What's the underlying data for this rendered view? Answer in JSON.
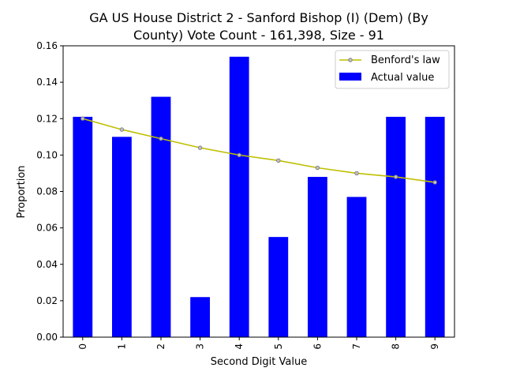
{
  "chart_data": {
    "type": "bar",
    "title_lines": [
      "GA US House District 2 - Sanford Bishop (I) (Dem) (By",
      "County) Vote Count - 161,398, Size - 91"
    ],
    "xlabel": "Second Digit Value",
    "ylabel": "Proportion",
    "categories": [
      "0",
      "1",
      "2",
      "3",
      "4",
      "5",
      "6",
      "7",
      "8",
      "9"
    ],
    "ylim": [
      0,
      0.16
    ],
    "yticks": [
      0.0,
      0.02,
      0.04,
      0.06,
      0.08,
      0.1,
      0.12,
      0.14,
      0.16
    ],
    "ytick_labels": [
      "0.00",
      "0.02",
      "0.04",
      "0.06",
      "0.08",
      "0.10",
      "0.12",
      "0.14",
      "0.16"
    ],
    "grid": false,
    "legend_position": "top-right",
    "series": [
      {
        "name": "Actual value",
        "kind": "bar",
        "color": "#0000ff",
        "values": [
          0.121,
          0.11,
          0.132,
          0.022,
          0.154,
          0.055,
          0.088,
          0.077,
          0.121,
          0.121
        ]
      },
      {
        "name": "Benford's law",
        "kind": "line",
        "color": "#bfbf00",
        "marker_color": "#c0c0c0",
        "values": [
          0.12,
          0.114,
          0.109,
          0.104,
          0.1,
          0.097,
          0.093,
          0.09,
          0.088,
          0.085
        ]
      }
    ]
  }
}
